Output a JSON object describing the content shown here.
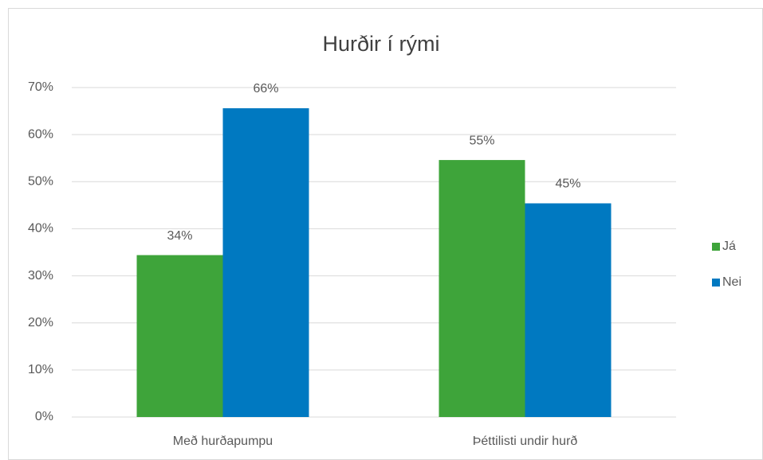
{
  "chart_data": {
    "type": "bar",
    "title": "Hurðir í rými",
    "categories": [
      "Með hurðapumpu",
      "Þéttilisti undir hurð"
    ],
    "series": [
      {
        "name": "Já",
        "color": "#3ea43a",
        "values": [
          34.4,
          54.6
        ],
        "value_labels": [
          "34%",
          "55%"
        ]
      },
      {
        "name": "Nei",
        "color": "#0079c1",
        "values": [
          65.6,
          45.4
        ],
        "value_labels": [
          "66%",
          "45%"
        ]
      }
    ],
    "ylim": [
      0,
      70
    ],
    "yticks": [
      {
        "value": 0,
        "label": "0%"
      },
      {
        "value": 10,
        "label": "10%"
      },
      {
        "value": 20,
        "label": "20%"
      },
      {
        "value": 30,
        "label": "30%"
      },
      {
        "value": 40,
        "label": "40%"
      },
      {
        "value": 50,
        "label": "50%"
      },
      {
        "value": 60,
        "label": "60%"
      },
      {
        "value": 70,
        "label": "70%"
      }
    ],
    "grid": true,
    "legend": "right"
  }
}
